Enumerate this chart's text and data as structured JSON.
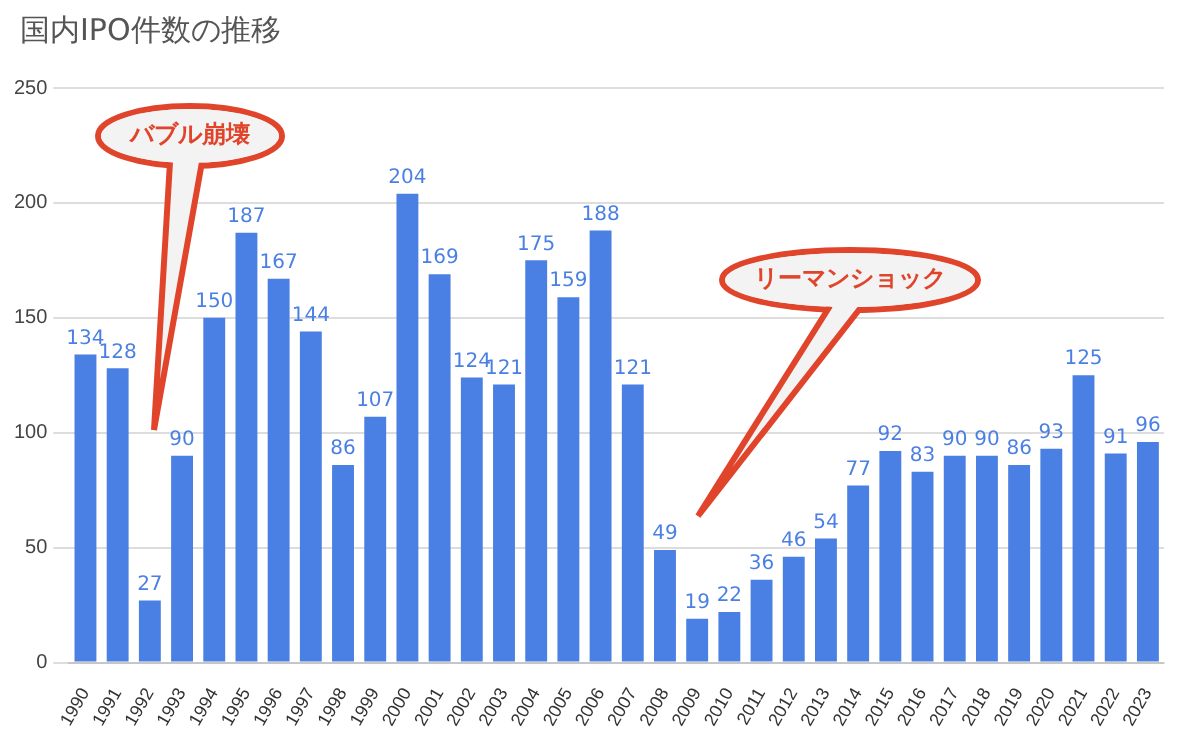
{
  "chart_data": {
    "type": "bar",
    "title": "国内IPO件数の推移",
    "categories": [
      "1990",
      "1991",
      "1992",
      "1993",
      "1994",
      "1995",
      "1996",
      "1997",
      "1998",
      "1999",
      "2000",
      "2001",
      "2002",
      "2003",
      "2004",
      "2005",
      "2006",
      "2007",
      "2008",
      "2009",
      "2010",
      "2011",
      "2012",
      "2013",
      "2014",
      "2015",
      "2016",
      "2017",
      "2018",
      "2019",
      "2020",
      "2021",
      "2022",
      "2023"
    ],
    "values": [
      134,
      128,
      27,
      90,
      150,
      187,
      167,
      144,
      86,
      107,
      204,
      169,
      124,
      121,
      175,
      159,
      188,
      121,
      49,
      19,
      22,
      36,
      46,
      54,
      77,
      92,
      83,
      90,
      90,
      86,
      93,
      125,
      91,
      96
    ],
    "color": "#4a7fe3",
    "ylim": [
      0,
      250
    ],
    "yticks": [
      0,
      50,
      100,
      150,
      200,
      250
    ],
    "grid": "y",
    "data_labels": true,
    "legend": false,
    "annotations": [
      "バブル崩壊",
      "リーマンショック"
    ]
  }
}
